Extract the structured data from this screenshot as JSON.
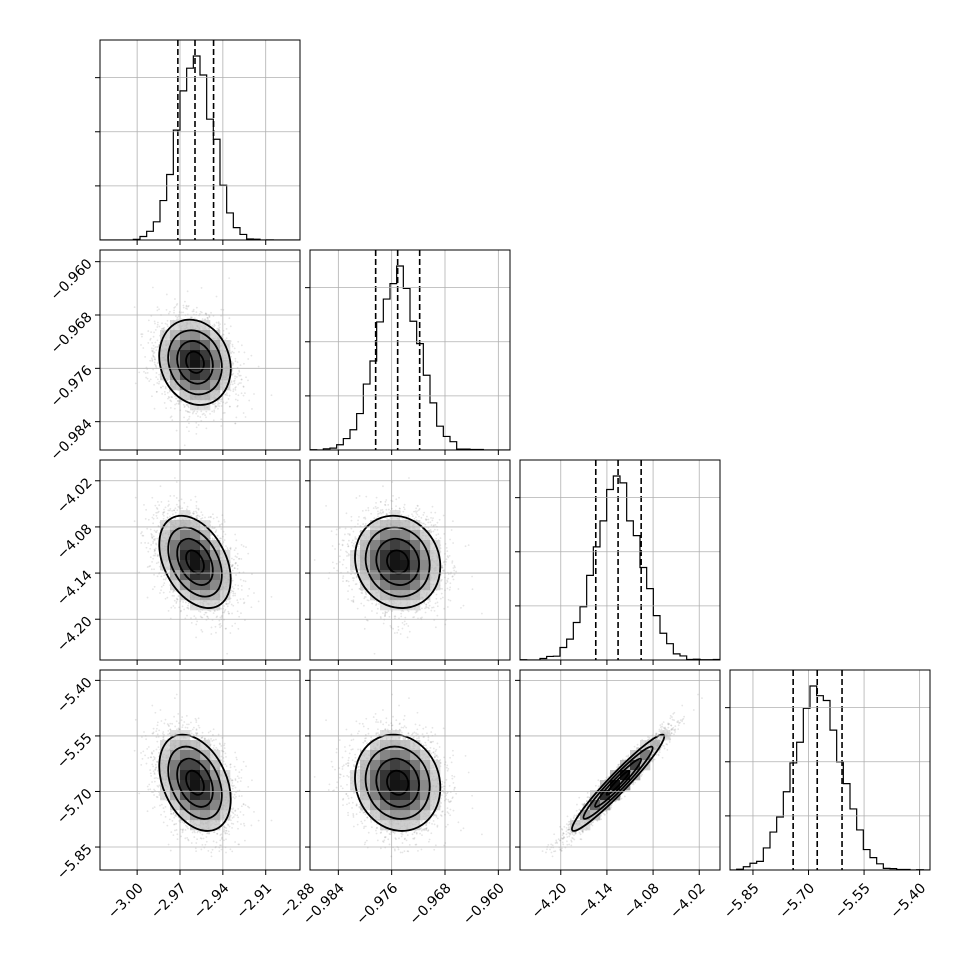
{
  "chart_data": {
    "type": "corner",
    "parameters": [
      {
        "range": [
          -3.026,
          -2.886
        ],
        "ticks": [
          -3.0,
          -2.97,
          -2.94,
          -2.91,
          -2.88
        ],
        "tick_labels": [
          "−3.00",
          "−2.97",
          "−2.94",
          "−2.91",
          "−2.88"
        ],
        "quantiles": [
          -2.9715,
          -2.9595,
          -2.9465
        ],
        "mean": -2.9595,
        "sd": 0.0125,
        "hist_bins": 30
      },
      {
        "range": [
          -0.98825,
          -0.95825
        ],
        "ticks": [
          -0.984,
          -0.976,
          -0.968,
          -0.96
        ],
        "tick_labels": [
          "−0.984",
          "−0.976",
          "−0.968",
          "−0.960"
        ],
        "quantiles": [
          -0.9784,
          -0.9751,
          -0.9718
        ],
        "mean": -0.9751,
        "sd": 0.0032,
        "hist_bins": 30
      },
      {
        "range": [
          -4.253,
          -3.993
        ],
        "ticks": [
          -4.2,
          -4.14,
          -4.08,
          -4.02
        ],
        "tick_labels": [
          "−4.20",
          "−4.14",
          "−4.08",
          "−4.02"
        ],
        "quantiles": [
          -4.1545,
          -4.1255,
          -4.0955
        ],
        "mean": -4.1255,
        "sd": 0.03,
        "hist_bins": 30
      },
      {
        "range": [
          -5.912,
          -5.372
        ],
        "ticks": [
          -5.85,
          -5.7,
          -5.55,
          -5.4
        ],
        "tick_labels": [
          "−5.85",
          "−5.70",
          "−5.55",
          "−5.40"
        ],
        "quantiles": [
          -5.7415,
          -5.6765,
          -5.6095
        ],
        "mean": -5.6765,
        "sd": 0.065,
        "hist_bins": 30
      }
    ],
    "correlations": [
      [
        1.0,
        -0.15,
        -0.38,
        -0.35
      ],
      [
        -0.15,
        1.0,
        -0.1,
        -0.1
      ],
      [
        -0.38,
        -0.1,
        1.0,
        0.96
      ],
      [
        -0.35,
        -0.1,
        0.96,
        1.0
      ]
    ],
    "contour_levels_sigma": [
      0.5,
      1.0,
      1.5,
      2.0
    ],
    "grid": true,
    "quantile_line_style": "dashed",
    "scatter_color": "#8a8a8a",
    "line_color": "#000000"
  }
}
